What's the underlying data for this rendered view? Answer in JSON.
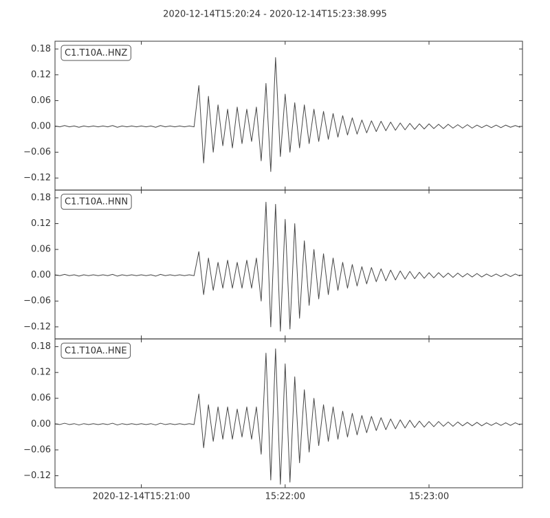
{
  "chart_data": {
    "type": "line",
    "title": "2020-12-14T15:20:24  -  2020-12-14T15:23:38.995",
    "xlim": [
      0,
      194.995
    ],
    "xticks": [
      {
        "value": 36,
        "label": "2020-12-14T15:21:00"
      },
      {
        "value": 96,
        "label": "15:22:00"
      },
      {
        "value": 156,
        "label": "15:23:00"
      }
    ],
    "ylim": [
      -0.148,
      0.198
    ],
    "yticks": [
      0.18,
      0.12,
      0.06,
      {
        "value": 0,
        "label": "0.00"
      },
      {
        "value": -0.06,
        "label": "−0.06"
      },
      {
        "value": -0.12,
        "label": "−0.12"
      }
    ],
    "x": [
      0,
      2,
      4,
      6,
      8,
      10,
      12,
      14,
      16,
      18,
      20,
      22,
      24,
      26,
      28,
      30,
      32,
      34,
      36,
      38,
      40,
      42,
      44,
      46,
      48,
      50,
      52,
      54,
      56,
      58,
      60,
      62,
      64,
      66,
      68,
      70,
      72,
      74,
      76,
      78,
      80,
      82,
      84,
      86,
      88,
      90,
      92,
      94,
      96,
      98,
      100,
      102,
      104,
      106,
      108,
      110,
      112,
      114,
      116,
      118,
      120,
      122,
      124,
      126,
      128,
      130,
      132,
      134,
      136,
      138,
      140,
      142,
      144,
      146,
      148,
      150,
      152,
      154,
      156,
      158,
      160,
      162,
      164,
      166,
      168,
      170,
      172,
      174,
      176,
      178,
      180,
      182,
      184,
      186,
      188,
      190,
      192,
      194
    ],
    "series": [
      {
        "name": "C1.T10A..HNZ",
        "color": "#444444",
        "values": [
          0.001,
          -0.001,
          0.002,
          -0.001,
          0.001,
          -0.002,
          0.001,
          -0.001,
          0.001,
          -0.001,
          0.001,
          -0.001,
          0.002,
          -0.002,
          0.001,
          -0.001,
          0.001,
          -0.001,
          0.001,
          -0.001,
          0.001,
          -0.002,
          0.002,
          -0.001,
          0.001,
          -0.001,
          0.001,
          -0.001,
          0.001,
          -0.001,
          0.095,
          -0.085,
          0.07,
          -0.06,
          0.05,
          -0.045,
          0.04,
          -0.05,
          0.045,
          -0.04,
          0.04,
          -0.035,
          0.045,
          -0.08,
          0.1,
          -0.105,
          0.16,
          -0.07,
          0.075,
          -0.06,
          0.055,
          -0.05,
          0.05,
          -0.04,
          0.04,
          -0.035,
          0.035,
          -0.03,
          0.03,
          -0.025,
          0.025,
          -0.02,
          0.02,
          -0.018,
          0.015,
          -0.015,
          0.013,
          -0.012,
          0.012,
          -0.01,
          0.01,
          -0.009,
          0.008,
          -0.008,
          0.007,
          -0.007,
          0.006,
          -0.006,
          0.006,
          -0.005,
          0.005,
          -0.005,
          0.005,
          -0.004,
          0.004,
          -0.004,
          0.004,
          -0.004,
          0.003,
          -0.003,
          0.003,
          -0.003,
          0.003,
          -0.003,
          0.003,
          -0.002,
          0.002,
          -0.002
        ]
      },
      {
        "name": "C1.T10A..HNN",
        "color": "#444444",
        "values": [
          0.001,
          -0.001,
          0.002,
          -0.001,
          0.001,
          -0.002,
          0.001,
          -0.001,
          0.001,
          -0.001,
          0.001,
          -0.001,
          0.002,
          -0.002,
          0.001,
          -0.001,
          0.001,
          -0.001,
          0.001,
          -0.001,
          0.001,
          -0.002,
          0.002,
          -0.001,
          0.001,
          -0.001,
          0.001,
          -0.001,
          0.001,
          -0.001,
          0.055,
          -0.045,
          0.04,
          -0.035,
          0.03,
          -0.03,
          0.035,
          -0.03,
          0.03,
          -0.03,
          0.035,
          -0.03,
          0.04,
          -0.06,
          0.17,
          -0.12,
          0.165,
          -0.13,
          0.13,
          -0.125,
          0.12,
          -0.1,
          0.08,
          -0.07,
          0.06,
          -0.055,
          0.05,
          -0.045,
          0.04,
          -0.035,
          0.03,
          -0.03,
          0.025,
          -0.025,
          0.02,
          -0.02,
          0.018,
          -0.015,
          0.015,
          -0.013,
          0.012,
          -0.011,
          0.01,
          -0.009,
          0.009,
          -0.008,
          0.007,
          -0.007,
          0.006,
          -0.006,
          0.006,
          -0.005,
          0.005,
          -0.005,
          0.005,
          -0.004,
          0.004,
          -0.004,
          0.004,
          -0.004,
          0.003,
          -0.003,
          0.003,
          -0.003,
          0.003,
          -0.003,
          0.003,
          -0.002
        ]
      },
      {
        "name": "C1.T10A..HNE",
        "color": "#444444",
        "values": [
          0.001,
          -0.001,
          0.002,
          -0.001,
          0.001,
          -0.002,
          0.001,
          -0.001,
          0.001,
          -0.001,
          0.001,
          -0.001,
          0.002,
          -0.002,
          0.001,
          -0.001,
          0.001,
          -0.001,
          0.001,
          -0.001,
          0.001,
          -0.002,
          0.002,
          -0.001,
          0.001,
          -0.001,
          0.001,
          -0.001,
          0.001,
          -0.001,
          0.07,
          -0.055,
          0.045,
          -0.04,
          0.04,
          -0.035,
          0.04,
          -0.035,
          0.035,
          -0.03,
          0.04,
          -0.035,
          0.04,
          -0.07,
          0.165,
          -0.13,
          0.175,
          -0.14,
          0.14,
          -0.135,
          0.11,
          -0.09,
          0.08,
          -0.065,
          0.06,
          -0.05,
          0.045,
          -0.04,
          0.04,
          -0.035,
          0.03,
          -0.03,
          0.025,
          -0.025,
          0.02,
          -0.02,
          0.018,
          -0.015,
          0.015,
          -0.013,
          0.012,
          -0.011,
          0.01,
          -0.009,
          0.009,
          -0.008,
          0.007,
          -0.007,
          0.006,
          -0.006,
          0.006,
          -0.005,
          0.005,
          -0.005,
          0.005,
          -0.004,
          0.004,
          -0.004,
          0.004,
          -0.004,
          0.003,
          -0.003,
          0.003,
          -0.003,
          0.003,
          -0.003,
          0.003,
          -0.002
        ]
      }
    ]
  }
}
